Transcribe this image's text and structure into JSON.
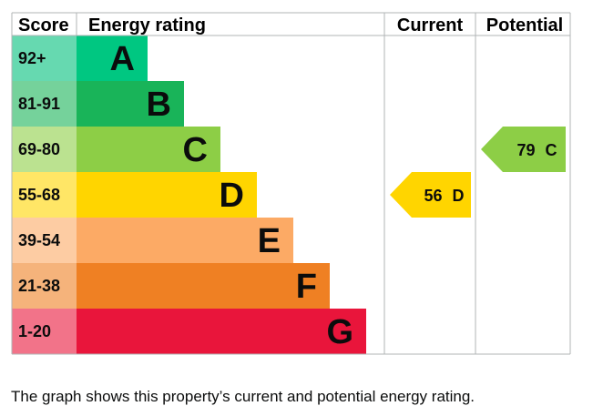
{
  "chart_data": {
    "type": "bar",
    "headers": {
      "score": "Score",
      "rating": "Energy rating",
      "current": "Current",
      "potential": "Potential"
    },
    "bands": [
      {
        "score": "92+",
        "letter": "A",
        "color": "#00c781",
        "score_bg": "#66d9b0"
      },
      {
        "score": "81-91",
        "letter": "B",
        "color": "#19b459",
        "score_bg": "#75d29b"
      },
      {
        "score": "69-80",
        "letter": "C",
        "color": "#8dce46",
        "score_bg": "#bbe290"
      },
      {
        "score": "55-68",
        "letter": "D",
        "color": "#ffd500",
        "score_bg": "#ffe666"
      },
      {
        "score": "39-54",
        "letter": "E",
        "color": "#fcaa65",
        "score_bg": "#fdcca3"
      },
      {
        "score": "21-38",
        "letter": "F",
        "color": "#ef8023",
        "score_bg": "#f5b37b"
      },
      {
        "score": "1-20",
        "letter": "G",
        "color": "#e9153b",
        "score_bg": "#f27389"
      }
    ],
    "current": {
      "value": 56,
      "letter": "D",
      "label": "56 D",
      "color": "#ffd500"
    },
    "potential": {
      "value": 79,
      "letter": "C",
      "label": "79 C",
      "color": "#8dce46"
    }
  },
  "caption": "The graph shows this property’s current and potential energy rating."
}
